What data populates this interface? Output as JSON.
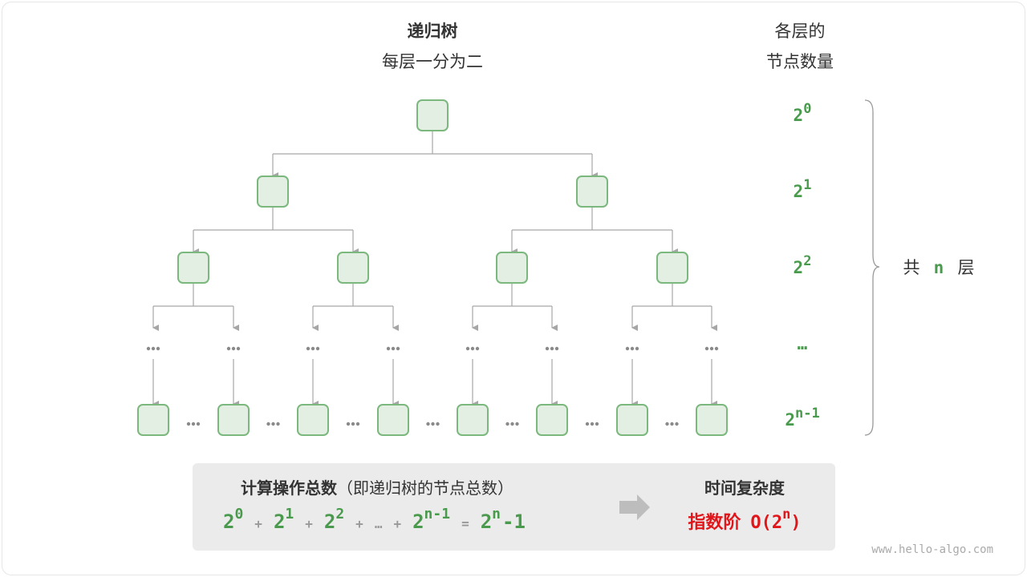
{
  "title": {
    "line1": "递归树",
    "line2": "每层一分为二"
  },
  "right_header": {
    "line1": "各层的",
    "line2": "节点数量"
  },
  "levels": [
    {
      "base": "2",
      "exp": "0"
    },
    {
      "base": "2",
      "exp": "1"
    },
    {
      "base": "2",
      "exp": "2"
    },
    {
      "base": "…",
      "exp": ""
    },
    {
      "base": "2",
      "exp": "n-1"
    }
  ],
  "layers_label": {
    "prefix": "共",
    "n": "n",
    "suffix": "层"
  },
  "summary": {
    "heading": "计算操作总数",
    "heading_note": "（即递归树的节点总数）",
    "terms": [
      "2",
      "0",
      "+",
      "2",
      "1",
      "+",
      "2",
      "2",
      "+",
      "…",
      "+",
      "2",
      "n-1",
      "=",
      "2",
      "n",
      "-1"
    ],
    "complexity_heading": "时间复杂度",
    "complexity_name": "指数阶",
    "complexity_o": "O(2",
    "complexity_exp": "n",
    "complexity_close": ")"
  },
  "colors": {
    "node_fill": "#e3efe2",
    "node_stroke": "#7bb87d",
    "green": "#4a9a4d",
    "red": "#e0161b",
    "edge": "#a6a6a6",
    "panel": "#ebebeb"
  },
  "watermark": "www.hello-algo.com"
}
